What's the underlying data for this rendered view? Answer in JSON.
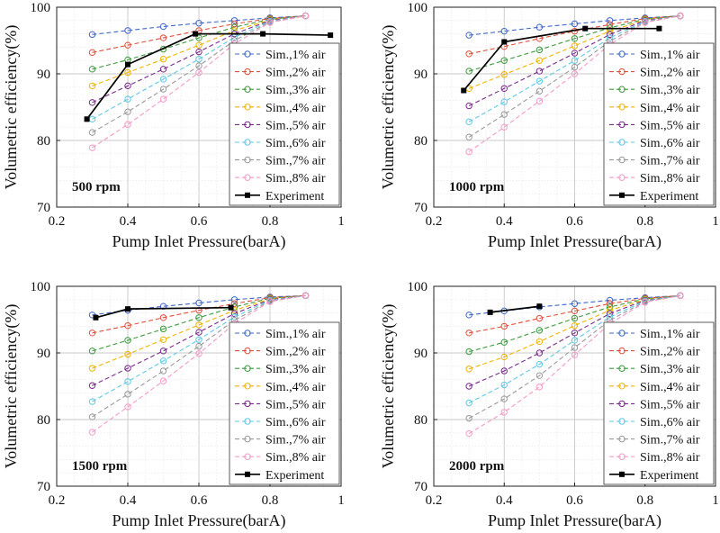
{
  "chart_data": [
    {
      "type": "line",
      "annotation": "500 rpm",
      "xlabel": "Pump Inlet Pressure(barA)",
      "ylabel": "Volumetric efficiency(%)",
      "xlim": [
        0.2,
        1
      ],
      "ylim": [
        70,
        100
      ],
      "xticks": [
        "0.2",
        "0.4",
        "0.6",
        "0.8",
        "1"
      ],
      "yticks": [
        "70",
        "80",
        "90",
        "100"
      ],
      "grid": true,
      "legend_position": "right",
      "x": [
        0.3,
        0.4,
        0.5,
        0.6,
        0.7,
        0.8,
        0.9
      ],
      "series": [
        {
          "name": "Sim.,1% air",
          "color": "#4169c8",
          "values": [
            95.9,
            96.5,
            97.1,
            97.6,
            98.0,
            98.4,
            98.7
          ]
        },
        {
          "name": "Sim.,2% air",
          "color": "#e0503c",
          "values": [
            93.2,
            94.3,
            95.4,
            96.5,
            97.5,
            98.3,
            98.7
          ]
        },
        {
          "name": "Sim.,3% air",
          "color": "#3c9a3c",
          "values": [
            90.7,
            92.1,
            93.7,
            95.4,
            97.0,
            98.2,
            98.7
          ]
        },
        {
          "name": "Sim.,4% air",
          "color": "#f0b400",
          "values": [
            88.2,
            90.2,
            92.2,
            94.3,
            96.5,
            98.1,
            98.7
          ]
        },
        {
          "name": "Sim.,5% air",
          "color": "#7a2a8c",
          "values": [
            85.7,
            88.2,
            90.7,
            93.3,
            96.0,
            98.0,
            98.7
          ]
        },
        {
          "name": "Sim.,6% air",
          "color": "#5fc8e6",
          "values": [
            83.2,
            86.2,
            89.2,
            92.2,
            95.5,
            97.9,
            98.7
          ]
        },
        {
          "name": "Sim.,7% air",
          "color": "#9a9a9a",
          "values": [
            81.2,
            84.3,
            87.7,
            91.2,
            95.0,
            97.8,
            98.7
          ]
        },
        {
          "name": "Sim.,8% air",
          "color": "#f59ac8",
          "values": [
            78.9,
            82.4,
            86.2,
            90.2,
            94.5,
            97.7,
            98.7
          ]
        }
      ],
      "experiment": {
        "name": "Experiment",
        "color": "#000000",
        "x": [
          0.285,
          0.4,
          0.59,
          0.78,
          0.97
        ],
        "values": [
          83.2,
          91.4,
          96.0,
          96.0,
          95.8
        ]
      }
    },
    {
      "type": "line",
      "annotation": "1000 rpm",
      "xlabel": "Pump Inlet Pressure(barA)",
      "ylabel": "Volumetric efficiency(%)",
      "xlim": [
        0.2,
        1
      ],
      "ylim": [
        70,
        100
      ],
      "xticks": [
        "0.2",
        "0.4",
        "0.6",
        "0.8",
        "1"
      ],
      "yticks": [
        "70",
        "80",
        "90",
        "100"
      ],
      "grid": true,
      "legend_position": "right",
      "x": [
        0.3,
        0.4,
        0.5,
        0.6,
        0.7,
        0.8,
        0.9
      ],
      "series": [
        {
          "name": "Sim.,1% air",
          "color": "#4169c8",
          "values": [
            95.8,
            96.4,
            97.0,
            97.5,
            98.0,
            98.4,
            98.7
          ]
        },
        {
          "name": "Sim.,2% air",
          "color": "#e0503c",
          "values": [
            93.0,
            94.1,
            95.3,
            96.4,
            97.4,
            98.3,
            98.7
          ]
        },
        {
          "name": "Sim.,3% air",
          "color": "#3c9a3c",
          "values": [
            90.4,
            92.0,
            93.6,
            95.3,
            96.9,
            98.2,
            98.7
          ]
        },
        {
          "name": "Sim.,4% air",
          "color": "#f0b400",
          "values": [
            87.8,
            89.9,
            92.0,
            94.2,
            96.4,
            98.1,
            98.7
          ]
        },
        {
          "name": "Sim.,5% air",
          "color": "#7a2a8c",
          "values": [
            85.2,
            87.8,
            90.4,
            93.1,
            95.9,
            98.0,
            98.7
          ]
        },
        {
          "name": "Sim.,6% air",
          "color": "#5fc8e6",
          "values": [
            82.8,
            85.8,
            88.9,
            92.0,
            95.4,
            97.9,
            98.7
          ]
        },
        {
          "name": "Sim.,7% air",
          "color": "#9a9a9a",
          "values": [
            80.5,
            83.9,
            87.4,
            91.0,
            94.9,
            97.8,
            98.7
          ]
        },
        {
          "name": "Sim.,8% air",
          "color": "#f59ac8",
          "values": [
            78.3,
            82.0,
            85.9,
            90.0,
            94.4,
            97.7,
            98.7
          ]
        }
      ],
      "experiment": {
        "name": "Experiment",
        "color": "#000000",
        "x": [
          0.285,
          0.4,
          0.63,
          0.84
        ],
        "values": [
          87.5,
          94.8,
          96.8,
          96.8
        ]
      }
    },
    {
      "type": "line",
      "annotation": "1500 rpm",
      "xlabel": "Pump Inlet Pressure(barA)",
      "ylabel": "Volumetric efficiency(%)",
      "xlim": [
        0.2,
        1
      ],
      "ylim": [
        70,
        100
      ],
      "xticks": [
        "0.2",
        "0.4",
        "0.6",
        "0.8",
        "1"
      ],
      "yticks": [
        "70",
        "80",
        "90",
        "100"
      ],
      "grid": true,
      "legend_position": "right",
      "x": [
        0.3,
        0.4,
        0.5,
        0.6,
        0.7,
        0.8,
        0.9
      ],
      "series": [
        {
          "name": "Sim.,1% air",
          "color": "#4169c8",
          "values": [
            95.7,
            96.4,
            97.0,
            97.5,
            98.0,
            98.4,
            98.6
          ]
        },
        {
          "name": "Sim.,2% air",
          "color": "#e0503c",
          "values": [
            93.0,
            94.1,
            95.3,
            96.4,
            97.4,
            98.3,
            98.6
          ]
        },
        {
          "name": "Sim.,3% air",
          "color": "#3c9a3c",
          "values": [
            90.3,
            91.9,
            93.6,
            95.3,
            96.9,
            98.2,
            98.6
          ]
        },
        {
          "name": "Sim.,4% air",
          "color": "#f0b400",
          "values": [
            87.7,
            89.8,
            92.0,
            94.2,
            96.4,
            98.1,
            98.6
          ]
        },
        {
          "name": "Sim.,5% air",
          "color": "#7a2a8c",
          "values": [
            85.1,
            87.7,
            90.3,
            93.1,
            95.9,
            98.0,
            98.6
          ]
        },
        {
          "name": "Sim.,6% air",
          "color": "#5fc8e6",
          "values": [
            82.7,
            85.7,
            88.8,
            92.0,
            95.4,
            97.9,
            98.6
          ]
        },
        {
          "name": "Sim.,7% air",
          "color": "#9a9a9a",
          "values": [
            80.4,
            83.8,
            87.3,
            91.0,
            94.9,
            97.8,
            98.6
          ]
        },
        {
          "name": "Sim.,8% air",
          "color": "#f59ac8",
          "values": [
            78.1,
            81.9,
            85.8,
            89.9,
            94.4,
            97.7,
            98.6
          ]
        }
      ],
      "experiment": {
        "name": "Experiment",
        "color": "#000000",
        "x": [
          0.31,
          0.4,
          0.69
        ],
        "values": [
          95.3,
          96.6,
          96.8
        ]
      }
    },
    {
      "type": "line",
      "annotation": "2000 rpm",
      "xlabel": "Pump Inlet Pressure(barA)",
      "ylabel": "Volumetric efficiency(%)",
      "xlim": [
        0.2,
        1
      ],
      "ylim": [
        70,
        100
      ],
      "xticks": [
        "0.2",
        "0.4",
        "0.6",
        "0.8",
        "1"
      ],
      "yticks": [
        "70",
        "80",
        "90",
        "100"
      ],
      "grid": true,
      "legend_position": "right",
      "x": [
        0.3,
        0.4,
        0.5,
        0.6,
        0.7,
        0.8,
        0.9
      ],
      "series": [
        {
          "name": "Sim.,1% air",
          "color": "#4169c8",
          "values": [
            95.7,
            96.3,
            96.9,
            97.4,
            97.9,
            98.3,
            98.6
          ]
        },
        {
          "name": "Sim.,2% air",
          "color": "#e0503c",
          "values": [
            93.0,
            94.0,
            95.2,
            96.3,
            97.4,
            98.2,
            98.6
          ]
        },
        {
          "name": "Sim.,3% air",
          "color": "#3c9a3c",
          "values": [
            90.2,
            91.6,
            93.4,
            95.2,
            96.9,
            98.1,
            98.6
          ]
        },
        {
          "name": "Sim.,4% air",
          "color": "#f0b400",
          "values": [
            87.6,
            89.4,
            91.7,
            94.1,
            96.4,
            98.0,
            98.6
          ]
        },
        {
          "name": "Sim.,5% air",
          "color": "#7a2a8c",
          "values": [
            85.0,
            87.3,
            90.0,
            93.0,
            95.9,
            97.9,
            98.6
          ]
        },
        {
          "name": "Sim.,6% air",
          "color": "#5fc8e6",
          "values": [
            82.5,
            85.2,
            88.3,
            91.9,
            95.4,
            97.8,
            98.6
          ]
        },
        {
          "name": "Sim.,7% air",
          "color": "#9a9a9a",
          "values": [
            80.2,
            83.1,
            86.6,
            90.8,
            94.9,
            97.7,
            98.6
          ]
        },
        {
          "name": "Sim.,8% air",
          "color": "#f59ac8",
          "values": [
            77.9,
            81.1,
            84.9,
            89.7,
            94.4,
            97.6,
            98.6
          ]
        }
      ],
      "experiment": {
        "name": "Experiment",
        "color": "#000000",
        "x": [
          0.36,
          0.5
        ],
        "values": [
          96.1,
          97.0
        ]
      }
    }
  ]
}
